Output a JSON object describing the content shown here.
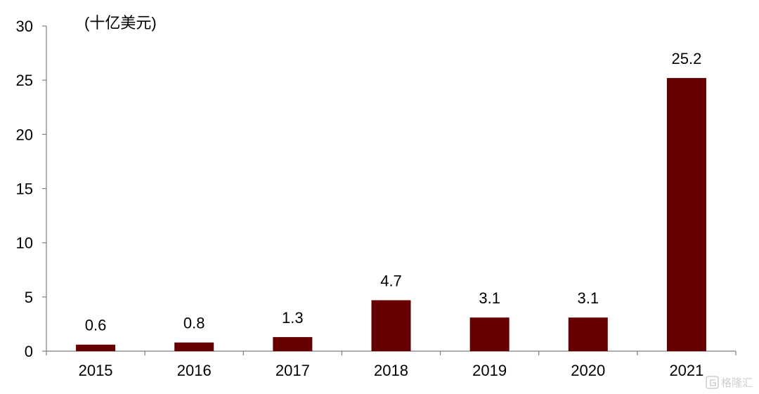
{
  "chart_data": {
    "type": "bar",
    "categories": [
      "2015",
      "2016",
      "2017",
      "2018",
      "2019",
      "2020",
      "2021"
    ],
    "values": [
      0.6,
      0.8,
      1.3,
      4.7,
      3.1,
      3.1,
      25.2
    ],
    "data_labels": [
      "0.6",
      "0.8",
      "1.3",
      "4.7",
      "3.1",
      "3.1",
      "25.2"
    ],
    "unit_label": "(十亿美元)",
    "title": "",
    "xlabel": "",
    "ylabel": "",
    "ylim": [
      0,
      30
    ],
    "yticks": [
      "0",
      "5",
      "10",
      "15",
      "20",
      "25",
      "30"
    ],
    "grid": false,
    "legend": "none",
    "bar_color": "#660000"
  },
  "watermark": {
    "text": "格隆汇",
    "icon": "gelonghui-logo-icon"
  }
}
